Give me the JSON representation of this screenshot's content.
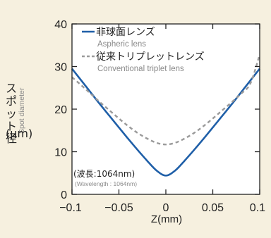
{
  "chart_data": {
    "type": "line",
    "title": "",
    "xlabel": "Z(mm)",
    "ylabel": "スポット径",
    "ylabel_sub": "Spot diameter",
    "yunit": "(μm)",
    "xlim": [
      -0.1,
      0.1
    ],
    "ylim": [
      0,
      40
    ],
    "x_ticks": [
      -0.1,
      -0.05,
      0,
      0.05,
      0.1
    ],
    "x_tick_labels": [
      "−0.1",
      "−0.05",
      "0",
      "0.05",
      "0.1"
    ],
    "y_ticks": [
      0,
      10,
      20,
      30,
      40
    ],
    "y_tick_labels": [
      "0",
      "10",
      "20",
      "30",
      "40"
    ],
    "grid": false,
    "legend_position": "top-right",
    "series": [
      {
        "name": "非球面レンズ",
        "name_sub": "Aspheric lens",
        "color": "#1f5fa8",
        "style": "solid",
        "x": [
          -0.1,
          -0.09,
          -0.08,
          -0.07,
          -0.06,
          -0.05,
          -0.04,
          -0.03,
          -0.02,
          -0.01,
          0,
          0.01,
          0.02,
          0.03,
          0.04,
          0.05,
          0.06,
          0.07,
          0.08,
          0.09,
          0.1
        ],
        "y": [
          29.5,
          26.7,
          23.9,
          21.1,
          18.4,
          15.7,
          13.0,
          10.4,
          7.9,
          5.6,
          4.4,
          5.6,
          7.9,
          10.4,
          13.0,
          15.7,
          18.4,
          21.1,
          23.9,
          26.7,
          29.5
        ]
      },
      {
        "name": "従来トリプレットレンズ",
        "name_sub": "Conventional triplet lens",
        "color": "#9a9a9a",
        "style": "dashed",
        "x": [
          -0.1,
          -0.09,
          -0.08,
          -0.07,
          -0.06,
          -0.05,
          -0.04,
          -0.03,
          -0.02,
          -0.01,
          0,
          0.01,
          0.02,
          0.03,
          0.04,
          0.05,
          0.06,
          0.07,
          0.08,
          0.09,
          0.1
        ],
        "y": [
          27.5,
          25.6,
          23.6,
          21.6,
          19.7,
          17.8,
          16.0,
          14.4,
          13.1,
          12.1,
          11.7,
          12.1,
          13.1,
          14.4,
          16.0,
          17.8,
          19.7,
          21.6,
          23.6,
          26.0,
          32.8
        ]
      }
    ],
    "annotations": [
      {
        "text": "(波長:1064nm)"
      },
      {
        "text": "(Wavelength : 1064nm)"
      }
    ]
  },
  "colors": {
    "background": "#f6f0df",
    "plot_area": "#ffffff",
    "axis": "#222222"
  }
}
